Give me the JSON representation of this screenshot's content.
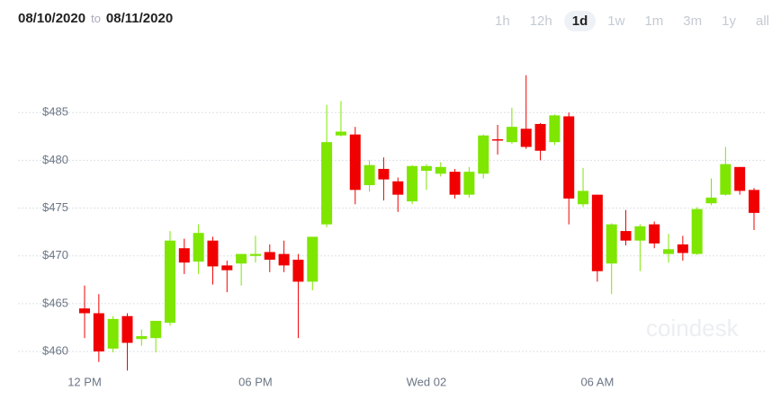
{
  "header": {
    "from": "08/10/2020",
    "to_word": "to",
    "to": "08/11/2020",
    "ranges": [
      "1h",
      "12h",
      "1d",
      "1w",
      "1m",
      "3m",
      "1y",
      "all"
    ],
    "selected_range": "1d"
  },
  "chart_data": {
    "type": "candlestick",
    "watermark": "coindesk",
    "categories": [
      "12 PM",
      null,
      null,
      null,
      null,
      null,
      null,
      null,
      null,
      null,
      null,
      null,
      "06 PM",
      null,
      null,
      null,
      null,
      null,
      null,
      null,
      null,
      null,
      null,
      null,
      "Wed 02",
      null,
      null,
      null,
      null,
      null,
      null,
      null,
      null,
      null,
      null,
      null,
      "06 AM",
      null,
      null,
      null,
      null,
      null,
      null,
      null,
      null,
      null,
      null,
      null
    ],
    "open": [
      464.5,
      464.0,
      460.3,
      463.7,
      461.3,
      461.4,
      463.0,
      470.8,
      469.4,
      471.6,
      469.0,
      469.2,
      470.0,
      470.4,
      470.2,
      469.6,
      467.3,
      473.3,
      482.6,
      482.7,
      477.4,
      479.1,
      477.8,
      475.7,
      478.9,
      478.6,
      478.8,
      476.4,
      478.6,
      482.2,
      481.9,
      483.3,
      483.8,
      481.9,
      484.6,
      475.4,
      476.4,
      469.2,
      472.6,
      471.6,
      473.3,
      470.2,
      471.2,
      470.2,
      475.5,
      476.4,
      479.3,
      476.9
    ],
    "high": [
      466.9,
      466.0,
      463.7,
      464.0,
      462.3,
      463.2,
      472.6,
      471.8,
      473.3,
      472.0,
      469.5,
      470.2,
      472.1,
      471.2,
      471.6,
      470.2,
      471.9,
      485.8,
      486.2,
      483.5,
      480.0,
      480.3,
      478.2,
      479.5,
      479.6,
      479.8,
      479.1,
      479.3,
      482.7,
      483.7,
      485.5,
      488.9,
      483.9,
      484.8,
      485.0,
      479.2,
      476.4,
      473.4,
      474.8,
      473.3,
      473.6,
      472.3,
      472.1,
      475.1,
      478.1,
      481.4,
      479.3,
      477.1
    ],
    "low": [
      461.4,
      458.9,
      459.9,
      458.0,
      460.6,
      459.9,
      462.7,
      468.1,
      468.1,
      467.0,
      466.2,
      466.9,
      469.3,
      468.3,
      468.3,
      461.4,
      466.4,
      473.0,
      482.5,
      475.4,
      476.7,
      475.8,
      474.6,
      475.4,
      476.9,
      478.3,
      476.0,
      476.1,
      478.1,
      480.6,
      481.7,
      481.2,
      480.0,
      481.6,
      473.3,
      475.1,
      467.3,
      466.0,
      471.1,
      468.4,
      470.8,
      469.3,
      469.5,
      470.1,
      475.3,
      476.3,
      476.4,
      472.7
    ],
    "close": [
      464.0,
      460.0,
      463.4,
      460.9,
      461.6,
      463.2,
      471.6,
      469.3,
      472.4,
      468.9,
      468.5,
      470.2,
      470.2,
      469.6,
      469.0,
      467.3,
      472.0,
      481.9,
      483.0,
      476.9,
      479.5,
      478.0,
      476.4,
      479.4,
      479.4,
      479.3,
      476.4,
      478.8,
      482.6,
      482.1,
      483.5,
      481.4,
      481.0,
      484.7,
      476.0,
      476.8,
      468.4,
      473.3,
      471.6,
      473.1,
      471.3,
      470.7,
      470.3,
      474.9,
      476.1,
      479.6,
      476.8,
      474.5
    ],
    "up_color": "#7ee600",
    "down_color": "#f00000",
    "ylim": [
      457,
      491.6
    ],
    "yticks": [
      {
        "value": 460,
        "label": "$460"
      },
      {
        "value": 465,
        "label": "$465"
      },
      {
        "value": 470,
        "label": "$470"
      },
      {
        "value": 475,
        "label": "$475"
      },
      {
        "value": 480,
        "label": "$480"
      },
      {
        "value": 485,
        "label": "$485"
      }
    ],
    "grid": true
  }
}
